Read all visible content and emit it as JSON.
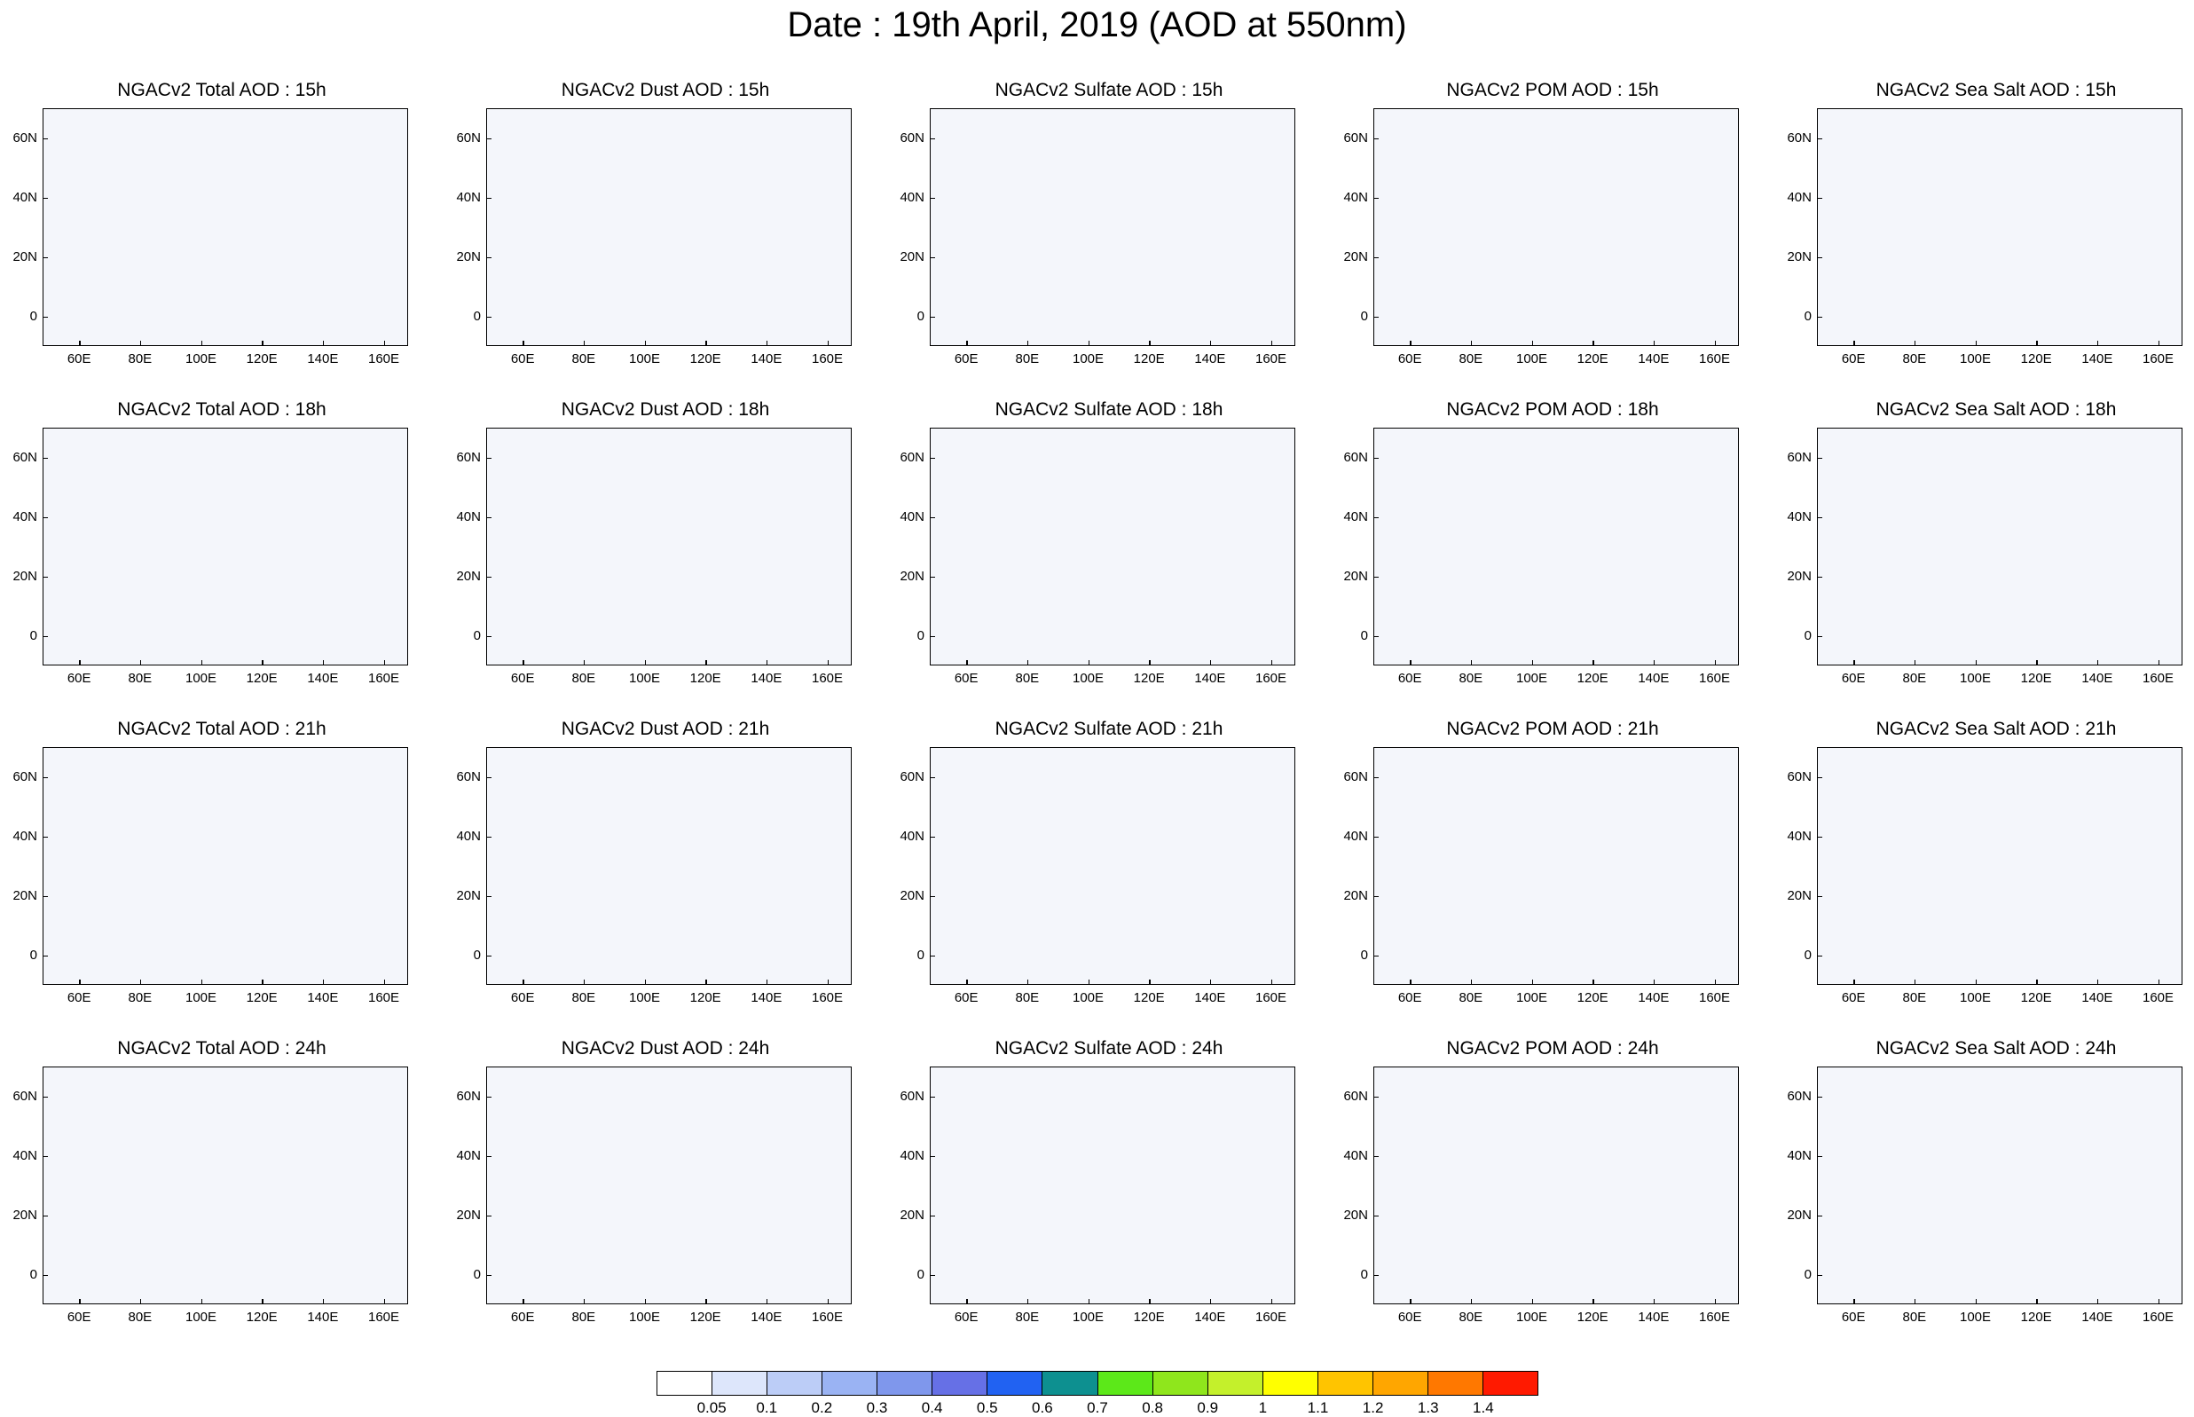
{
  "page_title": "Date : 19th April, 2019 (AOD at 550nm)",
  "chart_data": {
    "type": "heatmap",
    "title": "Date : 19th April, 2019 (AOD at 550nm)",
    "xtick_labels": [
      "60E",
      "80E",
      "100E",
      "120E",
      "140E",
      "160E"
    ],
    "ytick_labels": [
      "60N",
      "40N",
      "20N",
      "0"
    ],
    "xlim": [
      48,
      168
    ],
    "ylim": [
      -10,
      70
    ],
    "panels": [
      {
        "title": "NGACv2 Total AOD : 15h",
        "species": "Total",
        "hour": "15h"
      },
      {
        "title": "NGACv2 Dust AOD : 15h",
        "species": "Dust",
        "hour": "15h"
      },
      {
        "title": "NGACv2 Sulfate AOD : 15h",
        "species": "Sulfate",
        "hour": "15h"
      },
      {
        "title": "NGACv2 POM AOD : 15h",
        "species": "POM",
        "hour": "15h"
      },
      {
        "title": "NGACv2 Sea Salt AOD : 15h",
        "species": "Sea Salt",
        "hour": "15h"
      },
      {
        "title": "NGACv2 Total AOD : 18h",
        "species": "Total",
        "hour": "18h"
      },
      {
        "title": "NGACv2 Dust AOD : 18h",
        "species": "Dust",
        "hour": "18h"
      },
      {
        "title": "NGACv2 Sulfate AOD : 18h",
        "species": "Sulfate",
        "hour": "18h"
      },
      {
        "title": "NGACv2 POM AOD : 18h",
        "species": "POM",
        "hour": "18h"
      },
      {
        "title": "NGACv2 Sea Salt AOD : 18h",
        "species": "Sea Salt",
        "hour": "18h"
      },
      {
        "title": "NGACv2 Total AOD : 21h",
        "species": "Total",
        "hour": "21h"
      },
      {
        "title": "NGACv2 Dust AOD : 21h",
        "species": "Dust",
        "hour": "21h"
      },
      {
        "title": "NGACv2 Sulfate AOD : 21h",
        "species": "Sulfate",
        "hour": "21h"
      },
      {
        "title": "NGACv2 POM AOD : 21h",
        "species": "POM",
        "hour": "21h"
      },
      {
        "title": "NGACv2 Sea Salt AOD : 21h",
        "species": "Sea Salt",
        "hour": "21h"
      },
      {
        "title": "NGACv2 Total AOD : 24h",
        "species": "Total",
        "hour": "24h"
      },
      {
        "title": "NGACv2 Dust AOD : 24h",
        "species": "Dust",
        "hour": "24h"
      },
      {
        "title": "NGACv2 Sulfate AOD : 24h",
        "species": "Sulfate",
        "hour": "24h"
      },
      {
        "title": "NGACv2 POM AOD : 24h",
        "species": "POM",
        "hour": "24h"
      },
      {
        "title": "NGACv2 Sea Salt  AOD : 24h",
        "species": "Sea Salt",
        "hour": "24h"
      }
    ],
    "colorbar": {
      "levels": [
        "0.05",
        "0.1",
        "0.2",
        "0.3",
        "0.4",
        "0.5",
        "0.6",
        "0.7",
        "0.8",
        "0.9",
        "1",
        "1.1",
        "1.2",
        "1.3",
        "1.4"
      ],
      "colors": [
        "#ffffff",
        "#dde6fb",
        "#bccdf7",
        "#9ab3f3",
        "#7f97ec",
        "#6670e6",
        "#2162f2",
        "#0d9090",
        "#5ce819",
        "#8fe61c",
        "#c4f02b",
        "#ffff00",
        "#ffc400",
        "#ffa600",
        "#ff7800",
        "#ff1a00"
      ]
    }
  }
}
